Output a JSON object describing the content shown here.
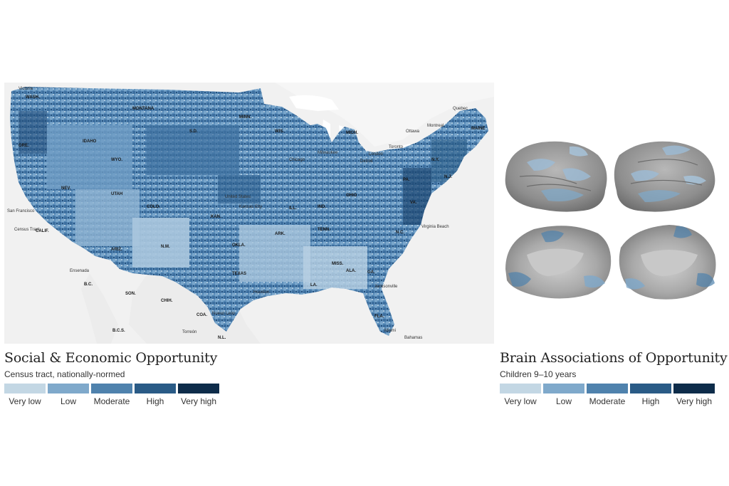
{
  "left": {
    "title": "Social & Economic Opportunity",
    "subtitle": "Census tract, nationally-normed",
    "legend": [
      {
        "label": "Very low",
        "color": "#c3d7e4"
      },
      {
        "label": "Low",
        "color": "#7fa9cb"
      },
      {
        "label": "Moderate",
        "color": "#4f82ad"
      },
      {
        "label": "High",
        "color": "#2a5b86"
      },
      {
        "label": "Very high",
        "color": "#0e2c4a"
      }
    ]
  },
  "right": {
    "title": "Brain Associations of Opportunity",
    "subtitle": "Children 9–10 years",
    "legend": [
      {
        "label": "Very low",
        "color": "#c3d7e4"
      },
      {
        "label": "Low",
        "color": "#7fa9cb"
      },
      {
        "label": "Moderate",
        "color": "#4f82ad"
      },
      {
        "label": "High",
        "color": "#2a5b86"
      },
      {
        "label": "Very high",
        "color": "#0e2c4a"
      }
    ]
  },
  "map": {
    "place_labels": [
      "Victoria",
      "WASH.",
      "MONTANA",
      "IDAHO",
      "ORE.",
      "WYO.",
      "S.D.",
      "MINN.",
      "WIS.",
      "MICH.",
      "NEV.",
      "UTAH",
      "COLO.",
      "KAN.",
      "Kansas City",
      "United States",
      "ILL.",
      "IND.",
      "OHIO",
      "Chicago",
      "Milwaukee",
      "Detroit",
      "London",
      "Toronto",
      "Ottawa",
      "Montreal",
      "Quebec",
      "MAINE",
      "N.Y.",
      "PA.",
      "N.J.",
      "VA.",
      "Virginia Beach",
      "N.C.",
      "TENN.",
      "ARK.",
      "OKLA.",
      "N.M.",
      "ARIZ.",
      "TEXAS",
      "MISS.",
      "ALA.",
      "GA.",
      "FLA.",
      "LA.",
      "Jacksonville",
      "Miami",
      "Bahamas",
      "San Francisco",
      "Census Tract",
      "Ensenada",
      "B.C.",
      "SON.",
      "CHIH.",
      "COA.",
      "Nuevo León",
      "Torreón",
      "B.C.S.",
      "N.L.",
      "CALIF.",
      "Houston"
    ]
  }
}
